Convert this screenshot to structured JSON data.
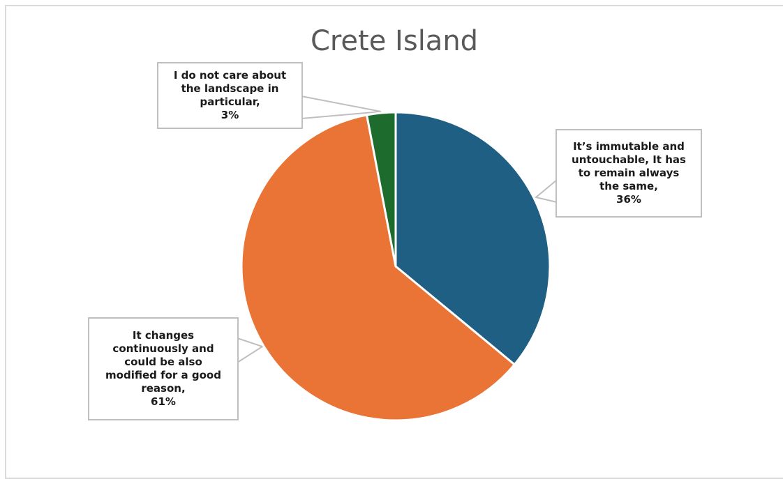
{
  "chart_data": {
    "type": "pie",
    "title": "Crete Island",
    "slices": [
      {
        "label_lines": [
          "It’s immutable and",
          "untouchable, It has",
          "to remain always",
          "the same,"
        ],
        "value": 36,
        "value_label": "36%",
        "color": "#1f5f83"
      },
      {
        "label_lines": [
          "It changes",
          "continuously and",
          "could be also",
          "modified for a good",
          "reason,"
        ],
        "value": 61,
        "value_label": "61%",
        "color": "#e97435"
      },
      {
        "label_lines": [
          "I do not care about",
          "the landscape in",
          "particular,"
        ],
        "value": 3,
        "value_label": "3%",
        "color": "#1e6b2e"
      }
    ],
    "legend": "none"
  }
}
